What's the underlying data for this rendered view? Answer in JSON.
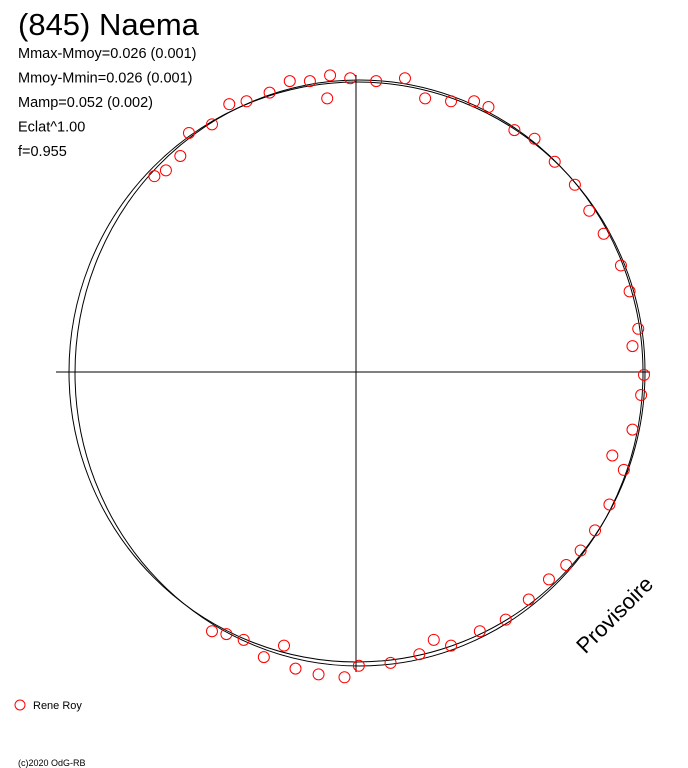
{
  "chart_data": {
    "type": "scatter",
    "title": "(845) Naema",
    "annotations": [
      "Mmax-Mmoy=0.026 (0.001)",
      "Mmoy-Mmin=0.026 (0.001)",
      "Mamp=0.052 (0.002)",
      "Eclat^1.00",
      "f=0.955"
    ],
    "watermark": "Provisoire",
    "footer": "(c)2020 OdG-RB",
    "xlim": [
      -1.2,
      1.1
    ],
    "ylim": [
      -1.2,
      1.2
    ],
    "series": [
      {
        "name": "Rene Roy",
        "color": "#ff0000",
        "x": [
          -0.7,
          -0.66,
          -0.61,
          -0.58,
          -0.5,
          -0.44,
          -0.38,
          -0.3,
          -0.23,
          -0.16,
          -0.09,
          -0.02,
          -0.1,
          0.07,
          0.17,
          0.24,
          0.33,
          0.41,
          0.46,
          0.55,
          0.62,
          0.69,
          0.76,
          0.81,
          0.86,
          0.92,
          0.95,
          0.98,
          0.96,
          1.0,
          0.99,
          0.96,
          0.93,
          0.89,
          0.88,
          0.83,
          0.78,
          0.73,
          0.67,
          0.6,
          0.52,
          0.43,
          0.33,
          0.27,
          0.22,
          0.12,
          0.01,
          -0.04,
          -0.13,
          -0.21,
          -0.25,
          -0.32,
          -0.39,
          -0.45,
          -0.5
        ],
        "y": [
          0.68,
          0.7,
          0.75,
          0.83,
          0.86,
          0.93,
          0.94,
          0.97,
          1.01,
          1.01,
          1.03,
          1.02,
          0.95,
          1.01,
          1.02,
          0.95,
          0.94,
          0.94,
          0.92,
          0.84,
          0.81,
          0.73,
          0.65,
          0.56,
          0.48,
          0.37,
          0.28,
          0.15,
          0.09,
          -0.01,
          -0.08,
          -0.2,
          -0.34,
          -0.29,
          -0.46,
          -0.55,
          -0.62,
          -0.67,
          -0.72,
          -0.79,
          -0.86,
          -0.9,
          -0.95,
          -0.93,
          -0.98,
          -1.01,
          -1.02,
          -1.06,
          -1.05,
          -1.03,
          -0.95,
          -0.99,
          -0.93,
          -0.91,
          -0.9
        ]
      }
    ]
  }
}
